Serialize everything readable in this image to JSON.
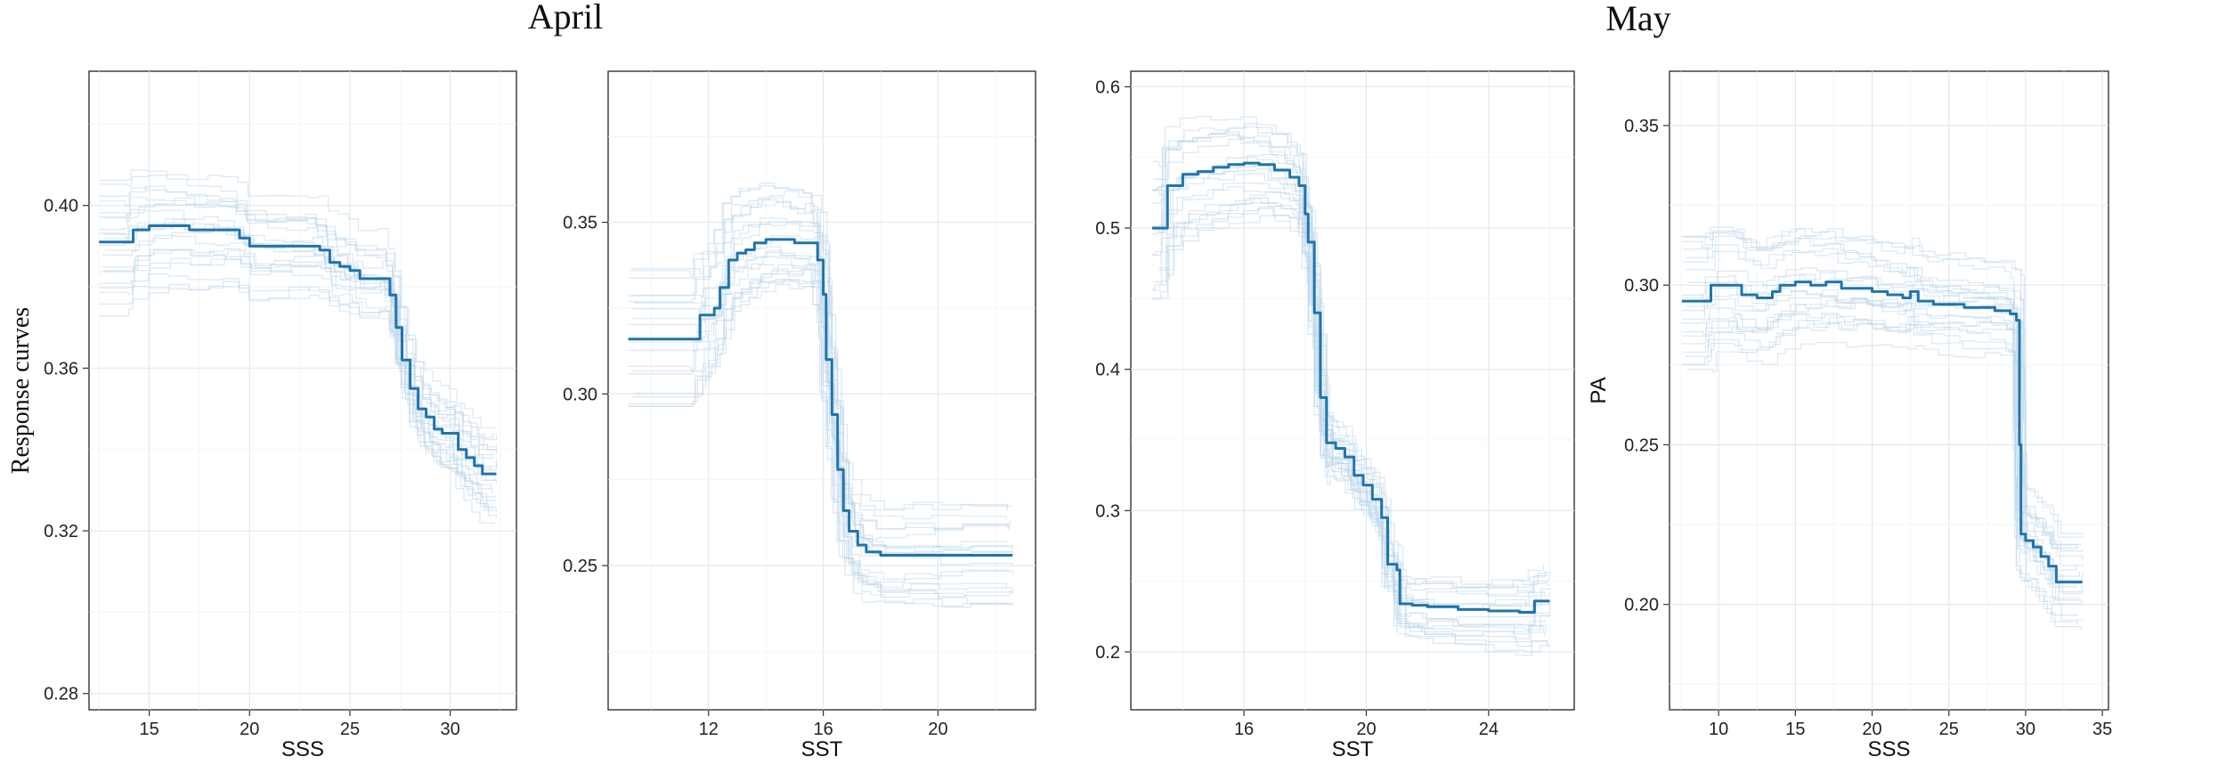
{
  "figure": {
    "titles": [
      "April",
      "May"
    ]
  },
  "chart_data": [
    {
      "type": "line",
      "group": "April",
      "xlabel": "SSS",
      "ylabel": "Response curves",
      "xlim": [
        12,
        33.3
      ],
      "ylim": [
        0.276,
        0.433
      ],
      "xticks": [
        15,
        20,
        25,
        30
      ],
      "yticks": [
        0.28,
        0.32,
        0.36,
        0.4
      ],
      "ytick_labels": [
        "0.28",
        "0.32",
        "0.36",
        "0.40"
      ],
      "grid": true,
      "series": [
        {
          "role": "mean",
          "x": [
            12.5,
            14.0,
            14.2,
            15.0,
            16.0,
            17.0,
            18.0,
            18.7,
            19.5,
            20.0,
            21.0,
            22.0,
            23.0,
            23.5,
            24.0,
            24.5,
            25.0,
            25.5,
            26.5,
            27.0,
            27.3,
            27.6,
            28.0,
            28.4,
            28.8,
            29.2,
            29.6,
            30.0,
            30.4,
            30.8,
            31.2,
            31.6,
            32.3
          ],
          "y": [
            0.391,
            0.391,
            0.394,
            0.395,
            0.395,
            0.394,
            0.394,
            0.394,
            0.392,
            0.39,
            0.39,
            0.39,
            0.39,
            0.389,
            0.386,
            0.385,
            0.384,
            0.382,
            0.382,
            0.378,
            0.37,
            0.362,
            0.355,
            0.35,
            0.348,
            0.345,
            0.344,
            0.344,
            0.34,
            0.338,
            0.336,
            0.334,
            0.334
          ]
        }
      ]
    },
    {
      "type": "line",
      "group": "April",
      "xlabel": "SST",
      "ylabel": "",
      "xlim": [
        8.5,
        23.4
      ],
      "ylim": [
        0.208,
        0.394
      ],
      "xticks": [
        12,
        16,
        20
      ],
      "yticks": [
        0.25,
        0.3,
        0.35
      ],
      "ytick_labels": [
        "0.25",
        "0.30",
        "0.35"
      ],
      "grid": true,
      "series": [
        {
          "role": "mean",
          "x": [
            9.2,
            11.6,
            11.7,
            12.2,
            12.4,
            12.7,
            13.0,
            13.3,
            13.6,
            14.0,
            14.5,
            15.0,
            15.5,
            15.8,
            16.0,
            16.1,
            16.3,
            16.5,
            16.7,
            16.9,
            17.2,
            17.5,
            18.0,
            19.0,
            20.0,
            21.0,
            22.6
          ],
          "y": [
            0.316,
            0.316,
            0.323,
            0.325,
            0.331,
            0.339,
            0.341,
            0.342,
            0.344,
            0.345,
            0.345,
            0.344,
            0.344,
            0.339,
            0.329,
            0.31,
            0.294,
            0.278,
            0.266,
            0.26,
            0.256,
            0.254,
            0.253,
            0.253,
            0.253,
            0.253,
            0.253
          ]
        }
      ]
    },
    {
      "type": "line",
      "group": "May",
      "xlabel": "SST",
      "ylabel": "",
      "xlim": [
        12.3,
        26.8
      ],
      "ylim": [
        0.159,
        0.611
      ],
      "xticks": [
        16,
        20,
        24
      ],
      "yticks": [
        0.2,
        0.3,
        0.4,
        0.5,
        0.6
      ],
      "ytick_labels": [
        "0.2",
        "0.3",
        "0.4",
        "0.5",
        "0.6"
      ],
      "grid": true,
      "series": [
        {
          "role": "mean",
          "x": [
            13.0,
            13.3,
            13.5,
            14.0,
            14.5,
            15.0,
            15.5,
            16.0,
            16.5,
            17.0,
            17.5,
            17.8,
            18.0,
            18.1,
            18.3,
            18.5,
            18.7,
            18.8,
            19.0,
            19.3,
            19.6,
            19.9,
            20.2,
            20.5,
            20.7,
            21.0,
            21.1,
            21.5,
            22.0,
            23.0,
            24.0,
            25.0,
            25.5,
            26.0
          ],
          "y": [
            0.5,
            0.5,
            0.53,
            0.538,
            0.54,
            0.543,
            0.545,
            0.546,
            0.545,
            0.541,
            0.536,
            0.53,
            0.51,
            0.49,
            0.44,
            0.38,
            0.348,
            0.348,
            0.344,
            0.338,
            0.325,
            0.318,
            0.308,
            0.295,
            0.262,
            0.258,
            0.234,
            0.233,
            0.232,
            0.23,
            0.229,
            0.228,
            0.236,
            0.236
          ]
        }
      ]
    },
    {
      "type": "line",
      "group": "May",
      "xlabel": "SSS",
      "ylabel": "PA",
      "xlim": [
        6.8,
        35.4
      ],
      "ylim": [
        0.167,
        0.367
      ],
      "xticks": [
        10,
        15,
        20,
        25,
        30,
        35
      ],
      "yticks": [
        0.2,
        0.25,
        0.3,
        0.35
      ],
      "ytick_labels": [
        "0.20",
        "0.25",
        "0.30",
        "0.35"
      ],
      "grid": true,
      "series": [
        {
          "role": "mean",
          "x": [
            7.6,
            9.3,
            9.5,
            11.0,
            11.5,
            12.5,
            13.5,
            14.0,
            15.0,
            16.0,
            17.0,
            18.0,
            19.0,
            20.0,
            21.0,
            22.0,
            22.5,
            23.0,
            24.0,
            25.0,
            26.0,
            27.0,
            28.0,
            29.0,
            29.4,
            29.6,
            29.7,
            30.0,
            30.5,
            31.0,
            31.5,
            32.0,
            33.7
          ],
          "y": [
            0.295,
            0.295,
            0.3,
            0.3,
            0.297,
            0.296,
            0.298,
            0.3,
            0.301,
            0.3,
            0.301,
            0.299,
            0.299,
            0.298,
            0.297,
            0.296,
            0.298,
            0.295,
            0.294,
            0.294,
            0.293,
            0.293,
            0.292,
            0.291,
            0.289,
            0.25,
            0.222,
            0.22,
            0.218,
            0.215,
            0.212,
            0.207,
            0.207
          ]
        }
      ]
    }
  ]
}
